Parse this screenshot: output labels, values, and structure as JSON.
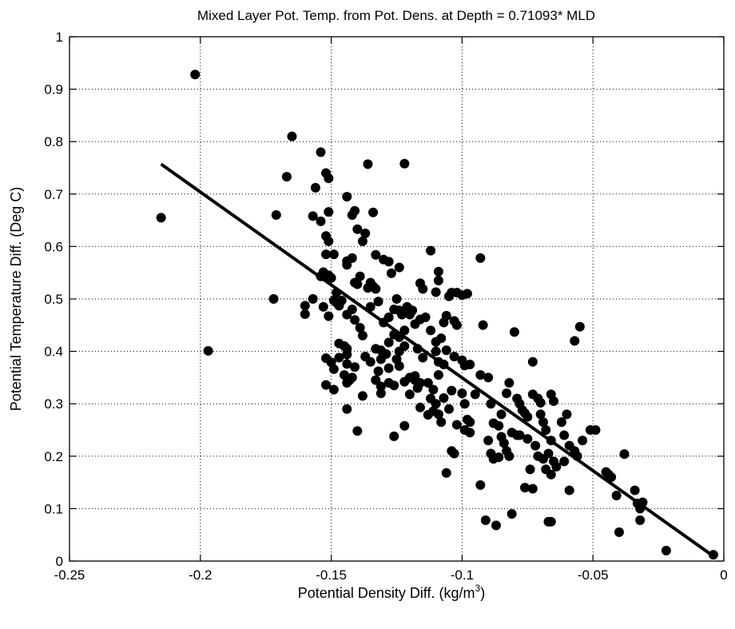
{
  "chart_data": {
    "type": "scatter",
    "title": "Mixed Layer Pot. Temp. from Pot. Dens. at Depth = 0.71093* MLD",
    "xlabel": "Potential Density Diff. (kg/m",
    "xlabel_superscript": "3",
    "xlabel_suffix": ")",
    "ylabel": "Potential Temperature Diff. (Deg C)",
    "xlim": [
      -0.25,
      0
    ],
    "ylim": [
      0,
      1
    ],
    "xticks": [
      "-0.25",
      "-0.2",
      "-0.15",
      "-0.1",
      "-0.05",
      "0"
    ],
    "yticks": [
      "0",
      "0.1",
      "0.2",
      "0.3",
      "0.4",
      "0.5",
      "0.6",
      "0.7",
      "0.8",
      "0.9",
      "1"
    ],
    "grid": true,
    "point_color": "#000000",
    "fit_line": {
      "x": [
        -0.215,
        -0.005
      ],
      "y": [
        0.757,
        0.013
      ]
    },
    "points": [
      [
        -0.202,
        0.928
      ],
      [
        -0.215,
        0.655
      ],
      [
        -0.197,
        0.401
      ],
      [
        -0.165,
        0.81
      ],
      [
        -0.167,
        0.733
      ],
      [
        -0.171,
        0.66
      ],
      [
        -0.172,
        0.5
      ],
      [
        -0.16,
        0.487
      ],
      [
        -0.16,
        0.471
      ],
      [
        -0.157,
        0.658
      ],
      [
        -0.156,
        0.712
      ],
      [
        -0.154,
        0.78
      ],
      [
        -0.154,
        0.648
      ],
      [
        -0.152,
        0.74
      ],
      [
        -0.151,
        0.73
      ],
      [
        -0.151,
        0.666
      ],
      [
        -0.152,
        0.62
      ],
      [
        -0.151,
        0.61
      ],
      [
        -0.152,
        0.585
      ],
      [
        -0.153,
        0.551
      ],
      [
        -0.154,
        0.543
      ],
      [
        -0.151,
        0.545
      ],
      [
        -0.15,
        0.54
      ],
      [
        -0.149,
        0.585
      ],
      [
        -0.149,
        0.497
      ],
      [
        -0.148,
        0.493
      ],
      [
        -0.147,
        0.487
      ],
      [
        -0.148,
        0.512
      ],
      [
        -0.146,
        0.497
      ],
      [
        -0.157,
        0.5
      ],
      [
        -0.153,
        0.485
      ],
      [
        -0.151,
        0.467
      ],
      [
        -0.144,
        0.695
      ],
      [
        -0.142,
        0.66
      ],
      [
        -0.14,
        0.633
      ],
      [
        -0.141,
        0.668
      ],
      [
        -0.138,
        0.61
      ],
      [
        -0.137,
        0.625
      ],
      [
        -0.136,
        0.757
      ],
      [
        -0.134,
        0.665
      ],
      [
        -0.144,
        0.572
      ],
      [
        -0.142,
        0.578
      ],
      [
        -0.144,
        0.565
      ],
      [
        -0.141,
        0.531
      ],
      [
        -0.139,
        0.543
      ],
      [
        -0.14,
        0.528
      ],
      [
        -0.136,
        0.521
      ],
      [
        -0.135,
        0.531
      ],
      [
        -0.134,
        0.524
      ],
      [
        -0.133,
        0.519
      ],
      [
        -0.132,
        0.495
      ],
      [
        -0.135,
        0.485
      ],
      [
        -0.142,
        0.48
      ],
      [
        -0.144,
        0.47
      ],
      [
        -0.141,
        0.46
      ],
      [
        -0.139,
        0.445
      ],
      [
        -0.138,
        0.43
      ],
      [
        -0.147,
        0.415
      ],
      [
        -0.145,
        0.41
      ],
      [
        -0.144,
        0.405
      ],
      [
        -0.144,
        0.394
      ],
      [
        -0.147,
        0.388
      ],
      [
        -0.152,
        0.387
      ],
      [
        -0.15,
        0.379
      ],
      [
        -0.149,
        0.366
      ],
      [
        -0.144,
        0.376
      ],
      [
        -0.141,
        0.37
      ],
      [
        -0.137,
        0.39
      ],
      [
        -0.133,
        0.405
      ],
      [
        -0.131,
        0.385
      ],
      [
        -0.132,
        0.362
      ],
      [
        -0.133,
        0.345
      ],
      [
        -0.131,
        0.32
      ],
      [
        -0.128,
        0.34
      ],
      [
        -0.126,
        0.335
      ],
      [
        -0.145,
        0.355
      ],
      [
        -0.142,
        0.35
      ],
      [
        -0.152,
        0.336
      ],
      [
        -0.149,
        0.327
      ],
      [
        -0.144,
        0.34
      ],
      [
        -0.144,
        0.29
      ],
      [
        -0.14,
        0.248
      ],
      [
        -0.138,
        0.315
      ],
      [
        -0.133,
        0.584
      ],
      [
        -0.13,
        0.575
      ],
      [
        -0.128,
        0.571
      ],
      [
        -0.127,
        0.549
      ],
      [
        -0.124,
        0.56
      ],
      [
        -0.125,
        0.5
      ],
      [
        -0.124,
        0.478
      ],
      [
        -0.123,
        0.47
      ],
      [
        -0.122,
        0.758
      ],
      [
        -0.126,
        0.48
      ],
      [
        -0.121,
        0.485
      ],
      [
        -0.119,
        0.478
      ],
      [
        -0.12,
        0.47
      ],
      [
        -0.118,
        0.452
      ],
      [
        -0.116,
        0.461
      ],
      [
        -0.114,
        0.465
      ],
      [
        -0.116,
        0.53
      ],
      [
        -0.115,
        0.519
      ],
      [
        -0.112,
        0.592
      ],
      [
        -0.11,
        0.513
      ],
      [
        -0.109,
        0.552
      ],
      [
        -0.109,
        0.535
      ],
      [
        -0.105,
        0.505
      ],
      [
        -0.104,
        0.512
      ],
      [
        -0.102,
        0.512
      ],
      [
        -0.1,
        0.507
      ],
      [
        -0.098,
        0.51
      ],
      [
        -0.093,
        0.578
      ],
      [
        -0.112,
        0.44
      ],
      [
        -0.11,
        0.418
      ],
      [
        -0.108,
        0.425
      ],
      [
        -0.107,
        0.455
      ],
      [
        -0.106,
        0.468
      ],
      [
        -0.106,
        0.402
      ],
      [
        -0.103,
        0.458
      ],
      [
        -0.102,
        0.45
      ],
      [
        -0.103,
        0.39
      ],
      [
        -0.1,
        0.383
      ],
      [
        -0.099,
        0.373
      ],
      [
        -0.097,
        0.375
      ],
      [
        -0.122,
        0.44
      ],
      [
        -0.124,
        0.427
      ],
      [
        -0.122,
        0.41
      ],
      [
        -0.117,
        0.405
      ],
      [
        -0.115,
        0.388
      ],
      [
        -0.11,
        0.4
      ],
      [
        -0.109,
        0.38
      ],
      [
        -0.107,
        0.375
      ],
      [
        -0.124,
        0.4
      ],
      [
        -0.125,
        0.385
      ],
      [
        -0.124,
        0.372
      ],
      [
        -0.122,
        0.342
      ],
      [
        -0.12,
        0.35
      ],
      [
        -0.118,
        0.353
      ],
      [
        -0.118,
        0.345
      ],
      [
        -0.116,
        0.34
      ],
      [
        -0.113,
        0.34
      ],
      [
        -0.111,
        0.327
      ],
      [
        -0.109,
        0.355
      ],
      [
        -0.112,
        0.31
      ],
      [
        -0.11,
        0.3
      ],
      [
        -0.111,
        0.286
      ],
      [
        -0.109,
        0.28
      ],
      [
        -0.107,
        0.311
      ],
      [
        -0.105,
        0.29
      ],
      [
        -0.108,
        0.265
      ],
      [
        -0.104,
        0.325
      ],
      [
        -0.1,
        0.32
      ],
      [
        -0.099,
        0.3
      ],
      [
        -0.102,
        0.26
      ],
      [
        -0.099,
        0.25
      ],
      [
        -0.097,
        0.245
      ],
      [
        -0.095,
        0.318
      ],
      [
        -0.093,
        0.355
      ],
      [
        -0.092,
        0.45
      ],
      [
        -0.09,
        0.35
      ],
      [
        -0.089,
        0.3
      ],
      [
        -0.088,
        0.263
      ],
      [
        -0.086,
        0.258
      ],
      [
        -0.085,
        0.28
      ],
      [
        -0.085,
        0.237
      ],
      [
        -0.084,
        0.225
      ],
      [
        -0.083,
        0.21
      ],
      [
        -0.082,
        0.2
      ],
      [
        -0.083,
        0.32
      ],
      [
        -0.082,
        0.34
      ],
      [
        -0.08,
        0.437
      ],
      [
        -0.079,
        0.31
      ],
      [
        -0.078,
        0.3
      ],
      [
        -0.077,
        0.288
      ],
      [
        -0.076,
        0.282
      ],
      [
        -0.075,
        0.275
      ],
      [
        -0.073,
        0.318
      ],
      [
        -0.071,
        0.31
      ],
      [
        -0.07,
        0.302
      ],
      [
        -0.07,
        0.28
      ],
      [
        -0.069,
        0.265
      ],
      [
        -0.068,
        0.25
      ],
      [
        -0.066,
        0.318
      ],
      [
        -0.065,
        0.305
      ],
      [
        -0.073,
        0.38
      ],
      [
        -0.079,
        0.24
      ],
      [
        -0.075,
        0.233
      ],
      [
        -0.072,
        0.22
      ],
      [
        -0.071,
        0.2
      ],
      [
        -0.069,
        0.195
      ],
      [
        -0.067,
        0.205
      ],
      [
        -0.066,
        0.23
      ],
      [
        -0.065,
        0.19
      ],
      [
        -0.064,
        0.18
      ],
      [
        -0.062,
        0.265
      ],
      [
        -0.061,
        0.24
      ],
      [
        -0.06,
        0.28
      ],
      [
        -0.059,
        0.22
      ],
      [
        -0.057,
        0.21
      ],
      [
        -0.056,
        0.2
      ],
      [
        -0.054,
        0.23
      ],
      [
        -0.051,
        0.25
      ],
      [
        -0.049,
        0.25
      ],
      [
        -0.057,
        0.42
      ],
      [
        -0.055,
        0.447
      ],
      [
        -0.045,
        0.17
      ],
      [
        -0.044,
        0.165
      ],
      [
        -0.043,
        0.16
      ],
      [
        -0.041,
        0.125
      ],
      [
        -0.04,
        0.055
      ],
      [
        -0.038,
        0.204
      ],
      [
        -0.034,
        0.135
      ],
      [
        -0.033,
        0.11
      ],
      [
        -0.032,
        0.1
      ],
      [
        -0.031,
        0.112
      ],
      [
        -0.032,
        0.078
      ],
      [
        -0.022,
        0.02
      ],
      [
        -0.004,
        0.012
      ],
      [
        -0.104,
        0.21
      ],
      [
        -0.103,
        0.205
      ],
      [
        -0.106,
        0.168
      ],
      [
        -0.093,
        0.145
      ],
      [
        -0.091,
        0.078
      ],
      [
        -0.087,
        0.068
      ],
      [
        -0.081,
        0.09
      ],
      [
        -0.076,
        0.14
      ],
      [
        -0.073,
        0.138
      ],
      [
        -0.067,
        0.075
      ],
      [
        -0.066,
        0.075
      ],
      [
        -0.059,
        0.135
      ],
      [
        -0.126,
        0.238
      ],
      [
        -0.122,
        0.258
      ],
      [
        -0.098,
        0.27
      ],
      [
        -0.097,
        0.265
      ],
      [
        -0.09,
        0.23
      ],
      [
        -0.089,
        0.205
      ],
      [
        -0.088,
        0.195
      ],
      [
        -0.086,
        0.198
      ],
      [
        -0.081,
        0.245
      ],
      [
        -0.078,
        0.24
      ],
      [
        -0.074,
        0.175
      ],
      [
        -0.068,
        0.175
      ],
      [
        -0.066,
        0.165
      ],
      [
        -0.061,
        0.19
      ],
      [
        -0.116,
        0.293
      ],
      [
        -0.113,
        0.279
      ],
      [
        -0.12,
        0.318
      ],
      [
        -0.117,
        0.33
      ],
      [
        -0.135,
        0.38
      ],
      [
        -0.128,
        0.368
      ],
      [
        -0.129,
        0.395
      ],
      [
        -0.131,
        0.402
      ],
      [
        -0.128,
        0.417
      ],
      [
        -0.126,
        0.432
      ],
      [
        -0.13,
        0.455
      ],
      [
        -0.128,
        0.465
      ],
      [
        -0.143,
        0.345
      ],
      [
        -0.131,
        0.333
      ]
    ]
  }
}
